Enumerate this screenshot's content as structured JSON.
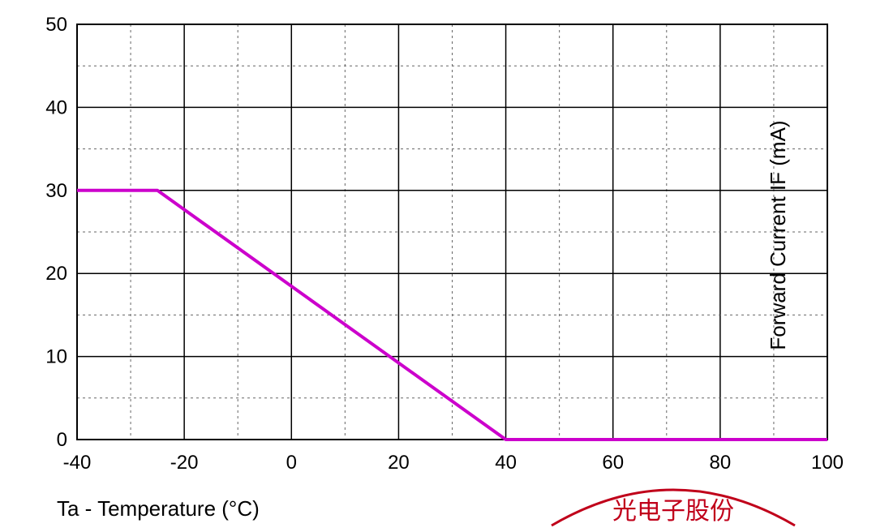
{
  "chart_data": {
    "type": "line",
    "title": "",
    "xlabel": "Ta - Temperature (°C)",
    "ylabel": "Forward Current IF (mA)",
    "xlim": [
      -40,
      100
    ],
    "ylim": [
      0,
      50
    ],
    "x_ticks": [
      "-40",
      "-20",
      "0",
      "20",
      "40",
      "60",
      "80",
      "100"
    ],
    "y_ticks": [
      "0",
      "10",
      "20",
      "30",
      "40",
      "50"
    ],
    "grid": true,
    "series": [
      {
        "name": "",
        "color": "#cc00cc",
        "x": [
          -40,
          -25,
          40,
          100
        ],
        "y": [
          30,
          30,
          0,
          0
        ]
      }
    ],
    "stamp_text": "光电子股份"
  }
}
